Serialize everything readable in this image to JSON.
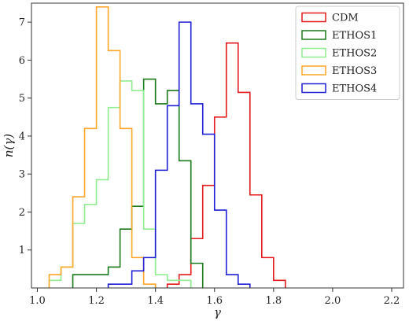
{
  "chart_data": {
    "type": "histogram",
    "xlabel": "γ",
    "ylabel": "n(γ)",
    "xlim": [
      0.98,
      2.24
    ],
    "ylim": [
      0,
      7.5
    ],
    "xticks": [
      1.0,
      1.2,
      1.4,
      1.6,
      1.8,
      2.0,
      2.2
    ],
    "xtick_labels": [
      "1.0",
      "1.2",
      "1.4",
      "1.6",
      "1.8",
      "2.0",
      "2.2"
    ],
    "yticks": [
      1,
      2,
      3,
      4,
      5,
      6,
      7
    ],
    "ytick_labels": [
      "1",
      "2",
      "3",
      "4",
      "5",
      "6",
      "7"
    ],
    "grid": false,
    "legend": {
      "placement": "top-right"
    },
    "series": [
      {
        "name": "CDM",
        "color": "#e41a1c",
        "bins": [
          {
            "x0": 1.44,
            "x1": 1.48,
            "y": 0.1
          },
          {
            "x0": 1.48,
            "x1": 1.52,
            "y": 0.35
          },
          {
            "x0": 1.52,
            "x1": 1.56,
            "y": 1.3
          },
          {
            "x0": 1.56,
            "x1": 1.6,
            "y": 2.7
          },
          {
            "x0": 1.6,
            "x1": 1.64,
            "y": 4.5
          },
          {
            "x0": 1.64,
            "x1": 1.68,
            "y": 6.45
          },
          {
            "x0": 1.68,
            "x1": 1.72,
            "y": 5.15
          },
          {
            "x0": 1.72,
            "x1": 1.76,
            "y": 2.45
          },
          {
            "x0": 1.76,
            "x1": 1.8,
            "y": 0.8
          },
          {
            "x0": 1.8,
            "x1": 1.84,
            "y": 0.2
          }
        ]
      },
      {
        "name": "ETHOS1",
        "color": "#1a7a1a",
        "bins": [
          {
            "x0": 1.12,
            "x1": 1.16,
            "y": 0.35
          },
          {
            "x0": 1.16,
            "x1": 1.2,
            "y": 0.35
          },
          {
            "x0": 1.2,
            "x1": 1.24,
            "y": 0.35
          },
          {
            "x0": 1.24,
            "x1": 1.28,
            "y": 0.55
          },
          {
            "x0": 1.28,
            "x1": 1.32,
            "y": 1.55
          },
          {
            "x0": 1.32,
            "x1": 1.36,
            "y": 2.15
          },
          {
            "x0": 1.36,
            "x1": 1.4,
            "y": 5.5
          },
          {
            "x0": 1.4,
            "x1": 1.44,
            "y": 4.85
          },
          {
            "x0": 1.44,
            "x1": 1.48,
            "y": 5.2
          },
          {
            "x0": 1.48,
            "x1": 1.52,
            "y": 3.35
          },
          {
            "x0": 1.52,
            "x1": 1.56,
            "y": 0.65
          }
        ]
      },
      {
        "name": "ETHOS2",
        "color": "#90ee90",
        "bins": [
          {
            "x0": 1.04,
            "x1": 1.08,
            "y": 0.2
          },
          {
            "x0": 1.08,
            "x1": 1.12,
            "y": 0.55
          },
          {
            "x0": 1.12,
            "x1": 1.16,
            "y": 1.7
          },
          {
            "x0": 1.16,
            "x1": 1.2,
            "y": 2.2
          },
          {
            "x0": 1.2,
            "x1": 1.24,
            "y": 2.85
          },
          {
            "x0": 1.24,
            "x1": 1.28,
            "y": 4.75
          },
          {
            "x0": 1.28,
            "x1": 1.32,
            "y": 5.45
          },
          {
            "x0": 1.32,
            "x1": 1.36,
            "y": 5.2
          },
          {
            "x0": 1.36,
            "x1": 1.4,
            "y": 1.55
          },
          {
            "x0": 1.4,
            "x1": 1.44,
            "y": 0.35
          },
          {
            "x0": 1.44,
            "x1": 1.48,
            "y": 0.2
          },
          {
            "x0": 1.48,
            "x1": 1.52,
            "y": 0.2
          }
        ]
      },
      {
        "name": "ETHOS3",
        "color": "#ffa52a",
        "bins": [
          {
            "x0": 1.04,
            "x1": 1.08,
            "y": 0.35
          },
          {
            "x0": 1.08,
            "x1": 1.12,
            "y": 0.55
          },
          {
            "x0": 1.12,
            "x1": 1.16,
            "y": 2.4
          },
          {
            "x0": 1.16,
            "x1": 1.2,
            "y": 4.2
          },
          {
            "x0": 1.2,
            "x1": 1.24,
            "y": 7.4
          },
          {
            "x0": 1.24,
            "x1": 1.28,
            "y": 6.25
          },
          {
            "x0": 1.28,
            "x1": 1.32,
            "y": 4.2
          },
          {
            "x0": 1.32,
            "x1": 1.36,
            "y": 0.8
          },
          {
            "x0": 1.36,
            "x1": 1.4,
            "y": 0.1
          }
        ]
      },
      {
        "name": "ETHOS4",
        "color": "#1f1fd6",
        "bins": [
          {
            "x0": 1.24,
            "x1": 1.28,
            "y": 0.1
          },
          {
            "x0": 1.28,
            "x1": 1.32,
            "y": 0.1
          },
          {
            "x0": 1.32,
            "x1": 1.36,
            "y": 0.45
          },
          {
            "x0": 1.36,
            "x1": 1.4,
            "y": 0.8
          },
          {
            "x0": 1.4,
            "x1": 1.44,
            "y": 3.1
          },
          {
            "x0": 1.44,
            "x1": 1.48,
            "y": 4.8
          },
          {
            "x0": 1.48,
            "x1": 1.52,
            "y": 7.0
          },
          {
            "x0": 1.52,
            "x1": 1.56,
            "y": 4.85
          },
          {
            "x0": 1.56,
            "x1": 1.6,
            "y": 4.05
          },
          {
            "x0": 1.6,
            "x1": 1.64,
            "y": 2.05
          },
          {
            "x0": 1.64,
            "x1": 1.68,
            "y": 0.35
          },
          {
            "x0": 1.68,
            "x1": 1.72,
            "y": 0.1
          }
        ]
      }
    ]
  }
}
